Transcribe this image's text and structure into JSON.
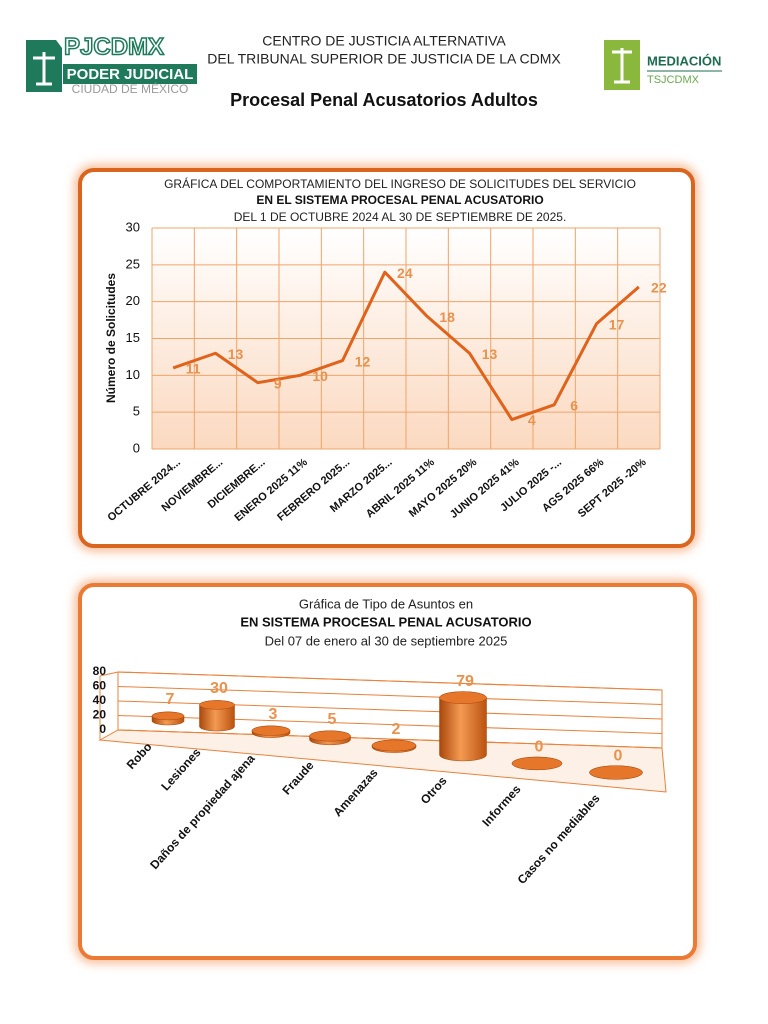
{
  "header": {
    "logo_left": {
      "name": "PJCDMX",
      "line1": "PODER JUDICIAL",
      "line2": "CIUDAD DE MÉXICO"
    },
    "center_lines": [
      "CENTRO DE JUSTICIA ALTERNATIVA",
      "DEL TRIBUNAL SUPERIOR DE JUSTICIA DE LA CDMX"
    ],
    "logo_right": {
      "name": "MEDIACIÓN",
      "line1": "TSJCDMX"
    },
    "title": "Procesal Penal Acusatorios Adultos"
  },
  "chart_data": [
    {
      "type": "line",
      "title_lines": [
        "GRÁFICA DEL COMPORTAMIENTO DEL INGRESO DE SOLICITUDES DEL SERVICIO",
        "EN EL SISTEMA PROCESAL PENAL ACUSATORIO",
        "DEL  1 DE OCTUBRE  2024  AL  30  DE  SEPTIEMBRE DE 2025."
      ],
      "y_label": "Número de Solicitudes",
      "categories": [
        "OCTUBRE  2024...",
        "NOVIEMBRE...",
        "DICIEMBRE...",
        "ENERO 2025  11%",
        "FEBRERO 2025...",
        "MARZO 2025...",
        "ABRIL 2025  11%",
        "MAYO 2025  20%",
        "JUNIO 2025   41%",
        "JULIO  2025   -...",
        "AGS  2025  66%",
        "SEPT  2025  -20%"
      ],
      "values": [
        11,
        13,
        9,
        10,
        12,
        24,
        18,
        13,
        4,
        6,
        17,
        22
      ],
      "color": "#e0621b",
      "label_color": "#e8924e",
      "ylim": [
        0,
        30
      ],
      "yticks": [
        0,
        5,
        10,
        15,
        20,
        25,
        30
      ],
      "grid": true
    },
    {
      "type": "bar3d",
      "title_lines": [
        "Gráfica de Tipo de Asuntos en",
        "EN  SISTEMA  PROCESAL  PENAL  ACUSATORIO",
        "Del  07  de enero al  30 de septiembre  2025"
      ],
      "categories": [
        "Robo",
        "Lesiones",
        "Daños de propiedad ajena",
        "Fraude",
        "Amenazas",
        "Otros",
        "Informes",
        "Casos no mediables"
      ],
      "values": [
        7,
        30,
        3,
        5,
        2,
        79,
        0,
        0
      ],
      "color": "#e8731f",
      "label_color": "#e8924e",
      "ylim": [
        0,
        80
      ],
      "yticks": [
        0,
        20,
        40,
        60,
        80
      ],
      "grid": true
    }
  ]
}
